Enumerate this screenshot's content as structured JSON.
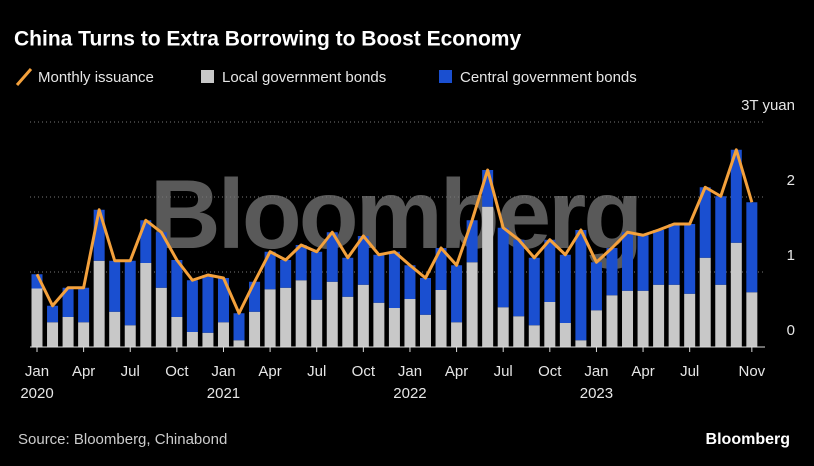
{
  "chart_data": {
    "type": "bar",
    "title": "China Turns to Extra Borrowing to Boost Economy",
    "source": "Source: Bloomberg, Chinabond",
    "logo": "Bloomberg",
    "watermark": "Bloomberg",
    "stacked": true,
    "grid": true,
    "legend": "top-left",
    "categories": [
      "Jan",
      null,
      null,
      "Apr",
      null,
      null,
      "Jul",
      null,
      null,
      "Oct",
      null,
      null,
      "Jan",
      null,
      null,
      "Apr",
      null,
      null,
      "Jul",
      null,
      null,
      "Oct",
      null,
      null,
      "Jan",
      null,
      null,
      "Apr",
      null,
      null,
      "Jul",
      null,
      null,
      "Oct",
      null,
      null,
      "Jan",
      null,
      null,
      "Apr",
      null,
      null,
      "Jul",
      null,
      null,
      null,
      "Nov"
    ],
    "category_years": [
      "2020",
      null,
      null,
      null,
      null,
      null,
      null,
      null,
      null,
      null,
      null,
      null,
      "2021",
      null,
      null,
      null,
      null,
      null,
      null,
      null,
      null,
      null,
      null,
      null,
      "2022",
      null,
      null,
      null,
      null,
      null,
      null,
      null,
      null,
      null,
      null,
      null,
      "2023",
      null,
      null,
      null,
      null,
      null,
      null,
      null,
      null,
      null,
      null
    ],
    "ylim": [
      0,
      3
    ],
    "yticks": [
      0,
      1,
      2,
      {
        "value": 3,
        "label": "3T yuan"
      }
    ],
    "series": [
      {
        "name": "Monthly issuance",
        "type": "line",
        "color": "#f4a13c",
        "values": [
          0.97,
          0.55,
          0.79,
          0.79,
          1.83,
          1.15,
          1.15,
          1.69,
          1.53,
          1.16,
          0.89,
          0.96,
          0.92,
          0.45,
          0.87,
          1.27,
          1.16,
          1.36,
          1.27,
          1.53,
          1.19,
          1.48,
          1.23,
          1.27,
          1.09,
          0.92,
          1.32,
          1.09,
          1.69,
          2.36,
          1.59,
          1.43,
          1.19,
          1.43,
          1.23,
          1.56,
          1.13,
          1.32,
          1.53,
          1.49,
          1.56,
          1.64,
          1.64,
          2.13,
          2.01,
          2.63,
          1.93
        ]
      },
      {
        "name": "Local government bonds",
        "type": "bar",
        "color": "#c8c8c8",
        "values": [
          0.78,
          0.33,
          0.4,
          0.33,
          1.15,
          0.47,
          0.29,
          1.12,
          0.79,
          0.4,
          0.2,
          0.19,
          0.33,
          0.09,
          0.47,
          0.77,
          0.79,
          0.89,
          0.63,
          0.87,
          0.67,
          0.83,
          0.59,
          0.52,
          0.64,
          0.43,
          0.76,
          0.33,
          1.13,
          1.87,
          0.53,
          0.41,
          0.29,
          0.6,
          0.32,
          0.09,
          0.49,
          0.69,
          0.75,
          0.75,
          0.83,
          0.83,
          0.71,
          1.19,
          0.83,
          1.39,
          0.73
        ]
      },
      {
        "name": "Central government bonds",
        "type": "bar",
        "color": "#1a4fd0",
        "values": [
          0.19,
          0.22,
          0.39,
          0.46,
          0.68,
          0.68,
          0.86,
          0.57,
          0.74,
          0.76,
          0.69,
          0.77,
          0.59,
          0.36,
          0.4,
          0.5,
          0.37,
          0.47,
          0.64,
          0.66,
          0.52,
          0.65,
          0.64,
          0.75,
          0.45,
          0.49,
          0.56,
          0.76,
          0.56,
          0.49,
          1.06,
          1.02,
          0.9,
          0.83,
          0.91,
          1.47,
          0.64,
          0.63,
          0.78,
          0.74,
          0.73,
          0.81,
          0.93,
          0.94,
          1.18,
          1.24,
          1.2
        ]
      }
    ]
  }
}
